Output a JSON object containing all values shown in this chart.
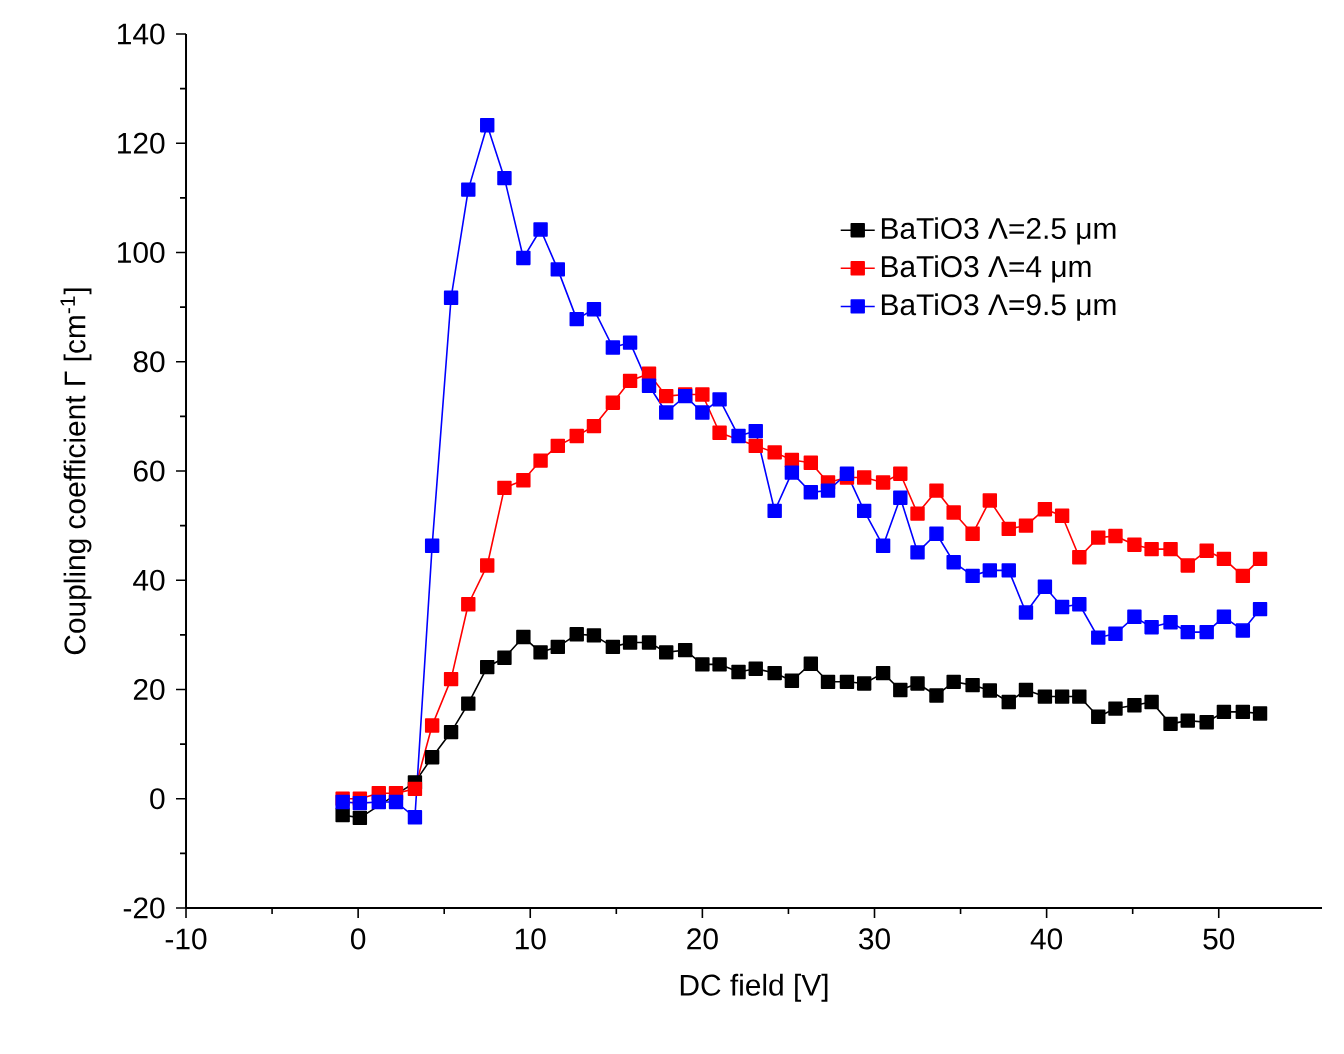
{
  "chart_data": {
    "type": "line",
    "xlabel": "DC field  [V]",
    "ylabel": "Coupling coefficient Γ [cm$^{-1}$]",
    "x": [
      -0.9,
      0.1,
      1.2,
      2.2,
      3.3,
      4.3,
      5.4,
      6.4,
      7.5,
      8.5,
      9.6,
      10.6,
      11.6,
      12.7,
      13.7,
      14.8,
      15.8,
      16.9,
      17.9,
      19.0,
      20.0,
      21.0,
      22.1,
      23.1,
      24.2,
      25.2,
      26.3,
      27.3,
      28.4,
      29.4,
      30.5,
      31.5,
      32.5,
      33.6,
      34.6,
      35.7,
      36.7,
      37.8,
      38.8,
      39.9,
      40.9,
      41.9,
      43.0,
      44.0,
      45.1,
      46.1,
      47.2,
      48.2,
      49.3,
      50.3,
      51.4,
      52.4
    ],
    "series": [
      {
        "name": "BaTiO3 Λ=2.5 μm",
        "color": "#000000",
        "values": [
          -3,
          -3.5,
          null,
          null,
          3,
          7.6,
          12.2,
          17.4,
          24.1,
          25.8,
          29.6,
          26.8,
          27.8,
          30.1,
          29.9,
          27.8,
          28.6,
          28.6,
          26.8,
          27.2,
          24.6,
          24.6,
          23.2,
          23.8,
          23,
          21.6,
          24.7,
          21.4,
          21.4,
          21.1,
          23,
          19.9,
          21.1,
          18.9,
          21.4,
          20.8,
          19.8,
          17.7,
          19.9,
          18.7,
          18.7,
          18.7,
          15,
          16.5,
          17.1,
          17.7,
          13.7,
          14.3,
          14,
          15.9,
          15.9,
          15.6
        ]
      },
      {
        "name": "BaTiO3 Λ=4 μm",
        "color": "#ff0000",
        "values": [
          0,
          0,
          1,
          1,
          1.8,
          13.4,
          21.9,
          35.6,
          42.7,
          56.9,
          58.3,
          61.9,
          64.6,
          66.4,
          68.2,
          72.5,
          76.5,
          77.8,
          73.7,
          74,
          74,
          67,
          null,
          64.6,
          63.4,
          62.0,
          61.5,
          57.9,
          58.8,
          58.8,
          57.9,
          59.5,
          52.2,
          56.4,
          52.4,
          48.5,
          54.6,
          49.4,
          50.0,
          53.0,
          51.8,
          44.2,
          47.8,
          48.1,
          46.5,
          45.7,
          45.7,
          42.7,
          45.4,
          43.9,
          40.8,
          43.9
        ]
      },
      {
        "name": "BaTiO3 Λ=9.5 μm",
        "color": "#0000ff",
        "values": [
          -0.6,
          -0.8,
          -0.6,
          -0.6,
          -3.4,
          46.3,
          91.7,
          111.5,
          123.3,
          113.6,
          99,
          104.2,
          96.9,
          87.8,
          89.6,
          82.6,
          83.5,
          75.6,
          70.7,
          73.7,
          70.7,
          73.1,
          66.4,
          67.3,
          52.7,
          59.7,
          56.1,
          56.4,
          59.5,
          52.7,
          46.3,
          55.1,
          45.1,
          48.5,
          43.3,
          40.8,
          41.8,
          41.8,
          34.1,
          38.8,
          35.1,
          35.6,
          29.5,
          30.2,
          33.3,
          31.4,
          32.3,
          30.5,
          30.5,
          33.3,
          30.8,
          34.7
        ]
      }
    ],
    "xlim": [
      -10,
      56
    ],
    "ylim": [
      -20,
      140
    ],
    "xticks": [
      -10,
      0,
      10,
      20,
      30,
      40,
      50
    ],
    "yticks": [
      -20,
      0,
      20,
      40,
      60,
      80,
      100,
      120,
      140
    ],
    "grid": false,
    "legend": "top right",
    "marker": "square",
    "line_style": "solid"
  }
}
